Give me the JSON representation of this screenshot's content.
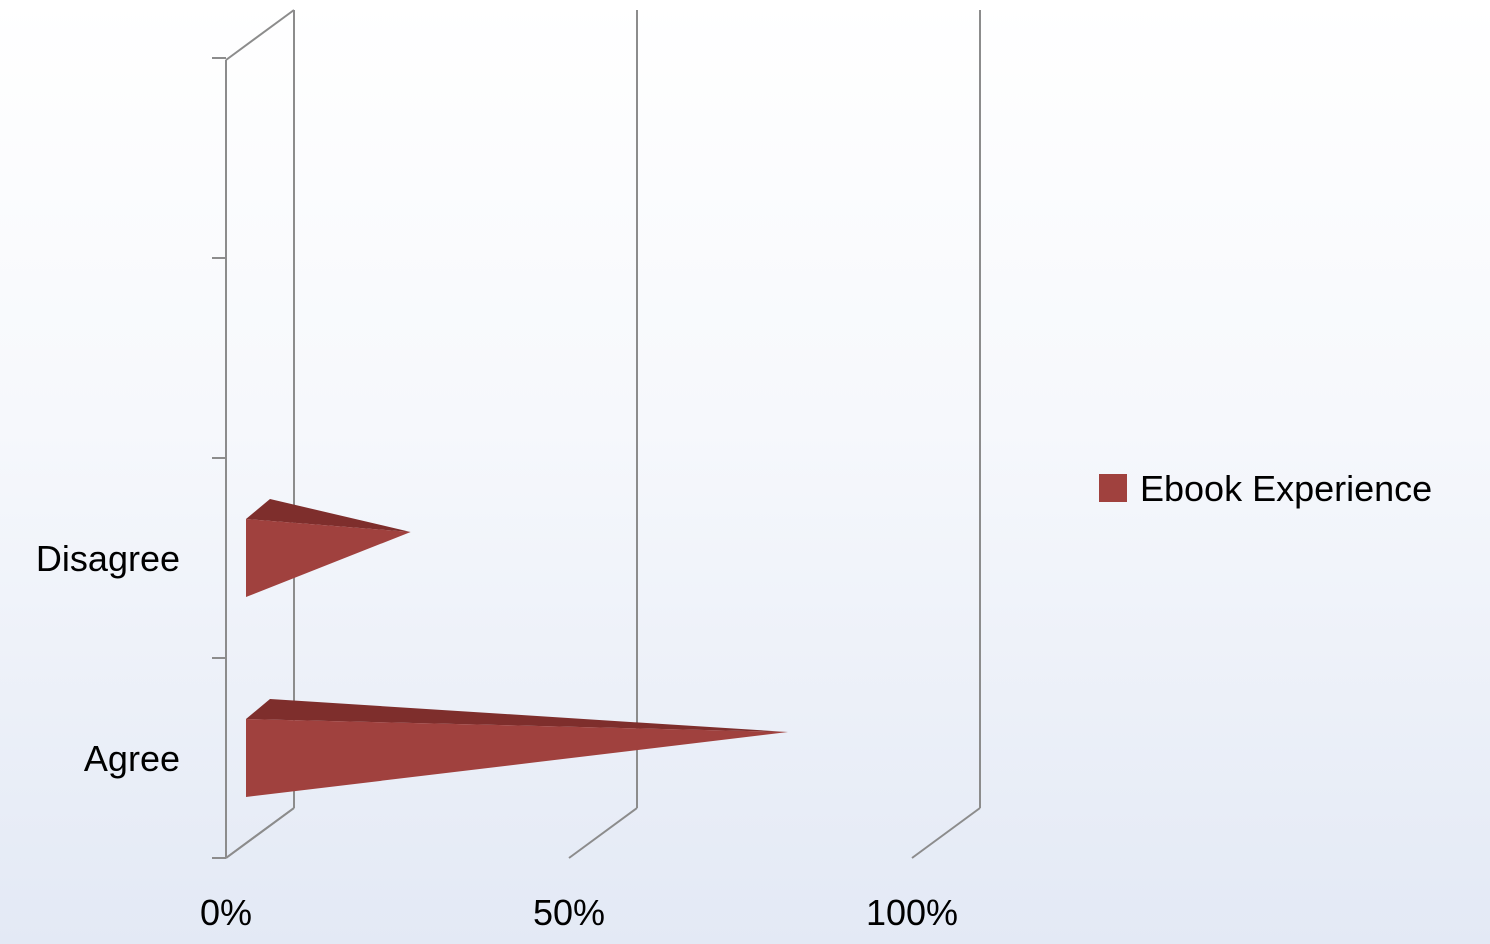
{
  "chart_data": {
    "type": "bar",
    "orientation": "horizontal",
    "shape": "3d-cone",
    "title": "",
    "xlabel": "",
    "ylabel": "",
    "categories": [
      "Agree",
      "Disagree"
    ],
    "series": [
      {
        "name": "Ebook Experience",
        "values": [
          79,
          24
        ],
        "color": "#a0413e"
      }
    ],
    "xlim": [
      0,
      100
    ],
    "x_ticks": [
      "0%",
      "50%",
      "100%"
    ],
    "grid": true,
    "legend_position": "right"
  }
}
